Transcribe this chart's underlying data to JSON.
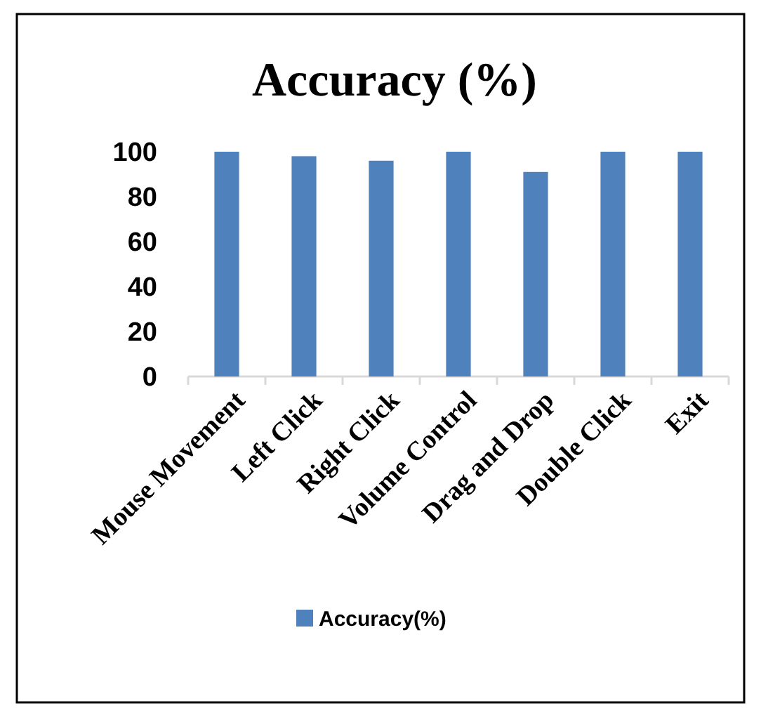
{
  "chart_data": {
    "type": "bar",
    "title": "Accuracy (%)",
    "categories": [
      "Mouse Movement",
      "Left Click",
      "Right Click",
      "Volume Control",
      "Drag and Drop",
      "Double Click",
      "Exit"
    ],
    "series": [
      {
        "name": "Accuracy(%)",
        "color": "#4f81bd",
        "values": [
          100,
          98,
          96,
          100,
          91,
          100,
          100
        ]
      }
    ],
    "ylim": [
      0,
      100
    ],
    "yticks": [
      0,
      20,
      40,
      60,
      80,
      100
    ],
    "grid": false,
    "legend": "bottom"
  }
}
